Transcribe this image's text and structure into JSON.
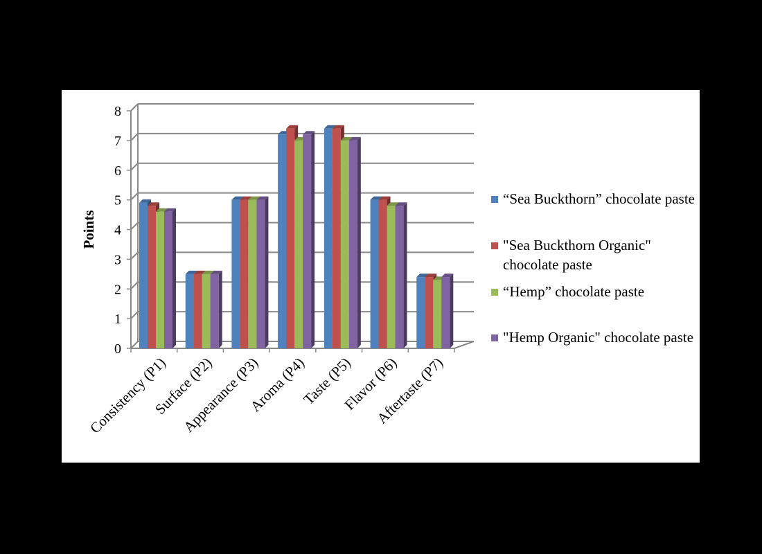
{
  "chart_data": {
    "type": "bar",
    "title": "",
    "xlabel": "",
    "ylabel": "Points",
    "ylim": [
      0,
      8
    ],
    "yticks": [
      0,
      1,
      2,
      3,
      4,
      5,
      6,
      7,
      8
    ],
    "categories": [
      "Consistency (P1)",
      "Surface (P2)",
      "Appearance (P3)",
      "Aroma (P4)",
      "Taste (P5)",
      "Flavor (P6)",
      "Aftertaste (P7)"
    ],
    "series": [
      {
        "name": "“Sea Buckthorn” chocolate paste",
        "color": "#4F81BD",
        "values": [
          4.9,
          2.5,
          5.0,
          7.2,
          7.4,
          5.0,
          2.4
        ]
      },
      {
        "name": "\"Sea Buckthorn Organic\" chocolate paste",
        "color": "#C0504D",
        "values": [
          4.8,
          2.5,
          5.0,
          7.4,
          7.4,
          5.0,
          2.4
        ]
      },
      {
        "name": "“Hemp” chocolate paste",
        "color": "#9BBB59",
        "values": [
          4.6,
          2.5,
          5.0,
          7.0,
          7.0,
          4.8,
          2.3
        ]
      },
      {
        "name": "\"Hemp Organic\" chocolate paste",
        "color": "#8064A2",
        "values": [
          4.6,
          2.5,
          5.0,
          7.2,
          7.0,
          4.8,
          2.4
        ]
      }
    ],
    "grid": true,
    "legend_position": "right"
  }
}
